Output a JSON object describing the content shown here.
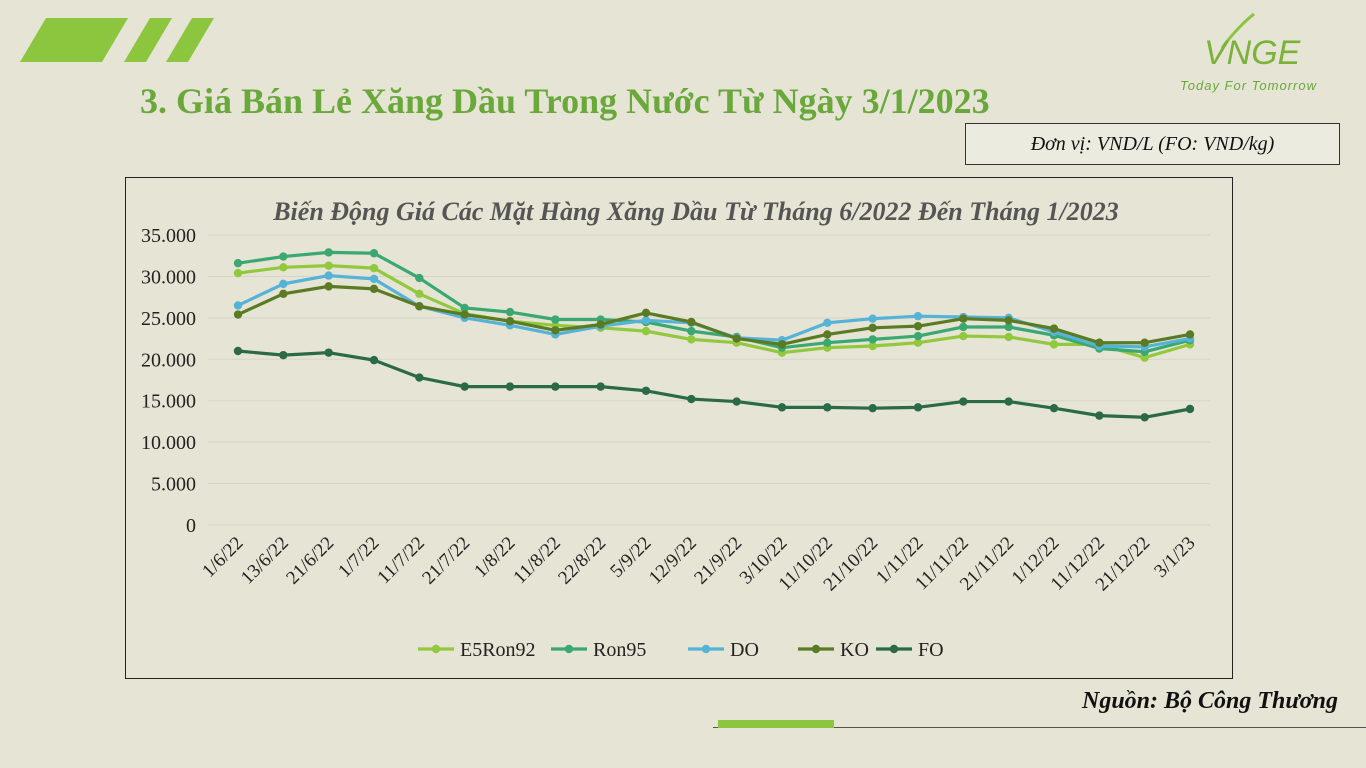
{
  "logo": {
    "brand": "VNGE",
    "tagline": "Today For Tomorrow"
  },
  "page": {
    "title": "3. Giá Bán Lẻ Xăng Dầu Trong Nước Từ Ngày 3/1/2023",
    "unit": "Đơn vị: VND/L (FO: VND/kg)",
    "source": "Nguồn: Bộ Công Thương"
  },
  "colors": {
    "title_green": "#6aa83c",
    "E5Ron92": "#92c83e",
    "Ron95": "#3aa870",
    "DO": "#55b3d8",
    "KO": "#5a7b24",
    "FO": "#2a6a46"
  },
  "chart_data": {
    "type": "line",
    "title": "Biến Động Giá Các Mặt Hàng Xăng Dầu Từ Tháng 6/2022 Đến Tháng 1/2023",
    "xlabel": "",
    "ylabel": "",
    "ylim": [
      0,
      35000
    ],
    "yticks": [
      0,
      5000,
      10000,
      15000,
      20000,
      25000,
      30000,
      35000
    ],
    "ytick_labels": [
      "0",
      "5.000",
      "10.000",
      "15.000",
      "20.000",
      "25.000",
      "30.000",
      "35.000"
    ],
    "grid": "horizontal",
    "legend": "bottom",
    "categories": [
      "1/6/22",
      "13/6/22",
      "21/6/22",
      "1/7/22",
      "11/7/22",
      "21/7/22",
      "1/8/22",
      "11/8/22",
      "22/8/22",
      "5/9/22",
      "12/9/22",
      "21/9/22",
      "3/10/22",
      "11/10/22",
      "21/10/22",
      "1/11/22",
      "11/11/22",
      "21/11/22",
      "1/12/22",
      "11/12/22",
      "21/12/22",
      "3/1/23"
    ],
    "series": [
      {
        "name": "E5Ron92",
        "color": "#92c83e",
        "values": [
          30400,
          31100,
          31300,
          31000,
          27900,
          25500,
          24600,
          24100,
          23800,
          23400,
          22400,
          22000,
          20800,
          21400,
          21600,
          22000,
          22800,
          22700,
          21800,
          21800,
          20200,
          21800
        ]
      },
      {
        "name": "Ron95",
        "color": "#3aa870",
        "values": [
          31600,
          32400,
          32900,
          32800,
          29800,
          26200,
          25700,
          24800,
          24800,
          24500,
          23400,
          22700,
          21400,
          22000,
          22400,
          22800,
          23900,
          23900,
          22900,
          21300,
          20900,
          22300
        ]
      },
      {
        "name": "DO",
        "color": "#55b3d8",
        "values": [
          26500,
          29100,
          30100,
          29700,
          26400,
          25000,
          24100,
          23000,
          24000,
          24700,
          24400,
          22600,
          22300,
          24400,
          24900,
          25200,
          25100,
          25000,
          23300,
          21600,
          21500,
          22500
        ]
      },
      {
        "name": "KO",
        "color": "#5a7b24",
        "values": [
          25400,
          27900,
          28800,
          28500,
          26400,
          25400,
          24600,
          23500,
          24200,
          25600,
          24500,
          22500,
          21800,
          23000,
          23800,
          24000,
          24900,
          24700,
          23700,
          22000,
          22000,
          23000
        ]
      },
      {
        "name": "FO",
        "color": "#2a6a46",
        "values": [
          21000,
          20500,
          20800,
          19900,
          17800,
          16700,
          16700,
          16700,
          16700,
          16200,
          15200,
          14900,
          14200,
          14200,
          14100,
          14200,
          14900,
          14900,
          14100,
          13200,
          13000,
          14000
        ]
      }
    ]
  }
}
